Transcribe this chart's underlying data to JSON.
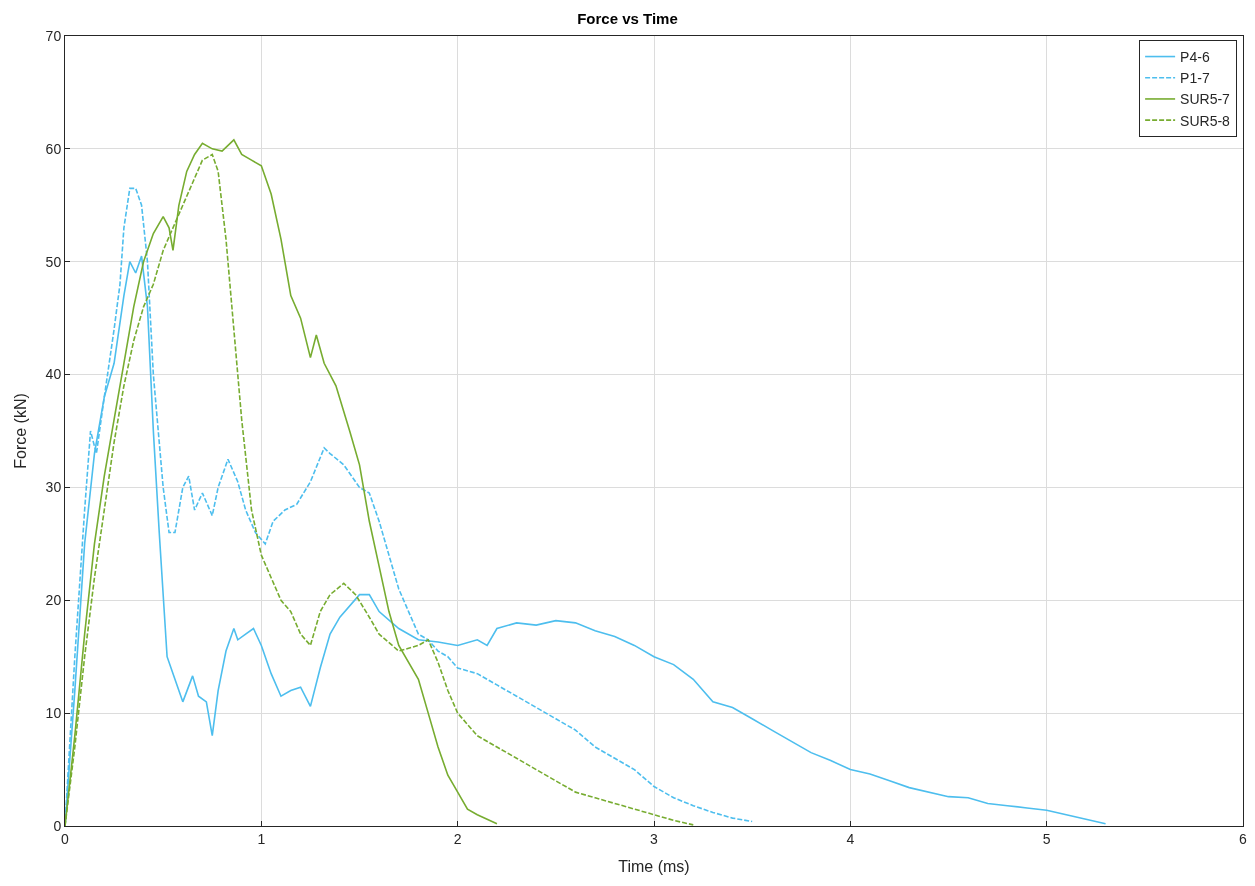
{
  "chart_data": {
    "type": "line",
    "title": "Force vs Time",
    "xlabel": "Time (ms)",
    "ylabel": "Force (kN)",
    "xlim": [
      0,
      6
    ],
    "xticks": [
      0,
      1,
      2,
      3,
      4,
      5,
      6
    ],
    "ylim": [
      0,
      70
    ],
    "yticks": [
      0,
      10,
      20,
      30,
      40,
      50,
      60,
      70
    ],
    "grid": true,
    "legend": "top right",
    "marker": "none",
    "series": [
      {
        "name": "P4-6",
        "color": "#4dbeee",
        "line_style": "solid",
        "x": [
          0,
          0.05,
          0.1,
          0.15,
          0.2,
          0.25,
          0.3,
          0.33,
          0.36,
          0.39,
          0.42,
          0.45,
          0.48,
          0.52,
          0.56,
          0.6,
          0.65,
          0.68,
          0.72,
          0.75,
          0.78,
          0.82,
          0.86,
          0.88,
          0.92,
          0.96,
          1.0,
          1.05,
          1.1,
          1.15,
          1.2,
          1.25,
          1.3,
          1.35,
          1.4,
          1.5,
          1.55,
          1.6,
          1.7,
          1.8,
          1.9,
          2.0,
          2.1,
          2.15,
          2.2,
          2.3,
          2.4,
          2.5,
          2.6,
          2.7,
          2.8,
          2.9,
          3.0,
          3.1,
          3.2,
          3.3,
          3.4,
          3.5,
          3.6,
          3.7,
          3.8,
          3.9,
          4.0,
          4.1,
          4.2,
          4.3,
          4.5,
          4.6,
          4.7,
          4.8,
          4.9,
          5.0,
          5.1,
          5.2,
          5.3
        ],
        "values": [
          0,
          12,
          25,
          33,
          38,
          41,
          47,
          50,
          49,
          50.5,
          46,
          35,
          26,
          15,
          13,
          11,
          13.3,
          11.5,
          11,
          8,
          12,
          15.5,
          17.5,
          16.5,
          17,
          17.5,
          16,
          13.5,
          11.5,
          12,
          12.3,
          10.6,
          14,
          17,
          18.5,
          20.5,
          20.5,
          19,
          17.5,
          16.5,
          16.3,
          16,
          16.5,
          16,
          17.5,
          18,
          17.8,
          18.2,
          18,
          17.3,
          16.8,
          16,
          15,
          14.3,
          13,
          11,
          10.5,
          9.5,
          8.5,
          7.5,
          6.5,
          5.8,
          5,
          4.6,
          4,
          3.4,
          2.6,
          2.5,
          2,
          1.8,
          1.6,
          1.4,
          1,
          0.6,
          0.2
        ]
      },
      {
        "name": "P1-7",
        "color": "#4dbeee",
        "line_style": "dashed",
        "x": [
          0,
          0.05,
          0.1,
          0.13,
          0.16,
          0.2,
          0.25,
          0.28,
          0.3,
          0.33,
          0.36,
          0.39,
          0.42,
          0.45,
          0.5,
          0.53,
          0.56,
          0.6,
          0.63,
          0.66,
          0.7,
          0.75,
          0.78,
          0.83,
          0.88,
          0.92,
          0.97,
          1.02,
          1.06,
          1.12,
          1.18,
          1.25,
          1.32,
          1.35,
          1.42,
          1.5,
          1.55,
          1.6,
          1.65,
          1.7,
          1.75,
          1.8,
          1.85,
          1.9,
          1.95,
          2.0,
          2.1,
          2.2,
          2.3,
          2.4,
          2.5,
          2.6,
          2.7,
          2.8,
          2.9,
          3.0,
          3.1,
          3.2,
          3.3,
          3.4,
          3.5
        ],
        "values": [
          0,
          15,
          28,
          35,
          33,
          38,
          44,
          48,
          53,
          56.5,
          56.5,
          55,
          50,
          40,
          30,
          26,
          26,
          30,
          31,
          28,
          29.5,
          27.5,
          30,
          32.5,
          30.5,
          28,
          26,
          25,
          27,
          28,
          28.5,
          30.5,
          33.5,
          33,
          32,
          30,
          29.5,
          27,
          24,
          21,
          19,
          17,
          16.5,
          15.5,
          15,
          14,
          13.5,
          12.5,
          11.5,
          10.5,
          9.5,
          8.5,
          7,
          6,
          5,
          3.5,
          2.5,
          1.8,
          1.2,
          0.7,
          0.4
        ]
      },
      {
        "name": "SUR5-7",
        "color": "#77ac30",
        "line_style": "solid",
        "x": [
          0,
          0.05,
          0.1,
          0.15,
          0.2,
          0.25,
          0.3,
          0.35,
          0.4,
          0.45,
          0.5,
          0.53,
          0.55,
          0.58,
          0.62,
          0.66,
          0.7,
          0.75,
          0.8,
          0.86,
          0.9,
          0.95,
          1.0,
          1.05,
          1.1,
          1.15,
          1.2,
          1.25,
          1.28,
          1.32,
          1.38,
          1.45,
          1.5,
          1.55,
          1.6,
          1.65,
          1.7,
          1.8,
          1.85,
          1.9,
          1.95,
          2.0,
          2.05,
          2.1,
          2.2
        ],
        "values": [
          0,
          8,
          17,
          25,
          31,
          36,
          41,
          46,
          50,
          52.5,
          54,
          53,
          51,
          55,
          58,
          59.5,
          60.5,
          60,
          59.8,
          60.8,
          59.5,
          59,
          58.5,
          56,
          52,
          47,
          45,
          41.5,
          43.5,
          41,
          39,
          35,
          32,
          27,
          23,
          19,
          16,
          13,
          10,
          7,
          4.5,
          3,
          1.5,
          1,
          0.2
        ]
      },
      {
        "name": "SUR5-8",
        "color": "#77ac30",
        "line_style": "dashed",
        "x": [
          0,
          0.05,
          0.1,
          0.15,
          0.2,
          0.25,
          0.3,
          0.35,
          0.4,
          0.45,
          0.5,
          0.55,
          0.6,
          0.65,
          0.7,
          0.75,
          0.78,
          0.82,
          0.86,
          0.9,
          0.95,
          1.0,
          1.05,
          1.1,
          1.15,
          1.2,
          1.25,
          1.3,
          1.35,
          1.42,
          1.48,
          1.55,
          1.6,
          1.7,
          1.8,
          1.85,
          1.9,
          1.95,
          2.0,
          2.1,
          2.2,
          2.3,
          2.4,
          2.5,
          2.6,
          2.7,
          2.8,
          2.9,
          3.0,
          3.1,
          3.2
        ],
        "values": [
          0,
          7,
          15,
          22,
          28,
          34,
          39,
          43,
          46,
          48,
          51,
          53,
          55,
          57,
          59,
          59.5,
          58,
          52,
          44,
          36,
          28,
          24,
          22,
          20,
          19,
          17,
          16,
          19,
          20.5,
          21.5,
          20.5,
          18.5,
          17,
          15.5,
          16,
          16.5,
          14.5,
          12,
          10,
          8,
          7,
          6,
          5,
          4,
          3,
          2.5,
          2,
          1.5,
          1,
          0.5,
          0.1
        ]
      }
    ]
  }
}
